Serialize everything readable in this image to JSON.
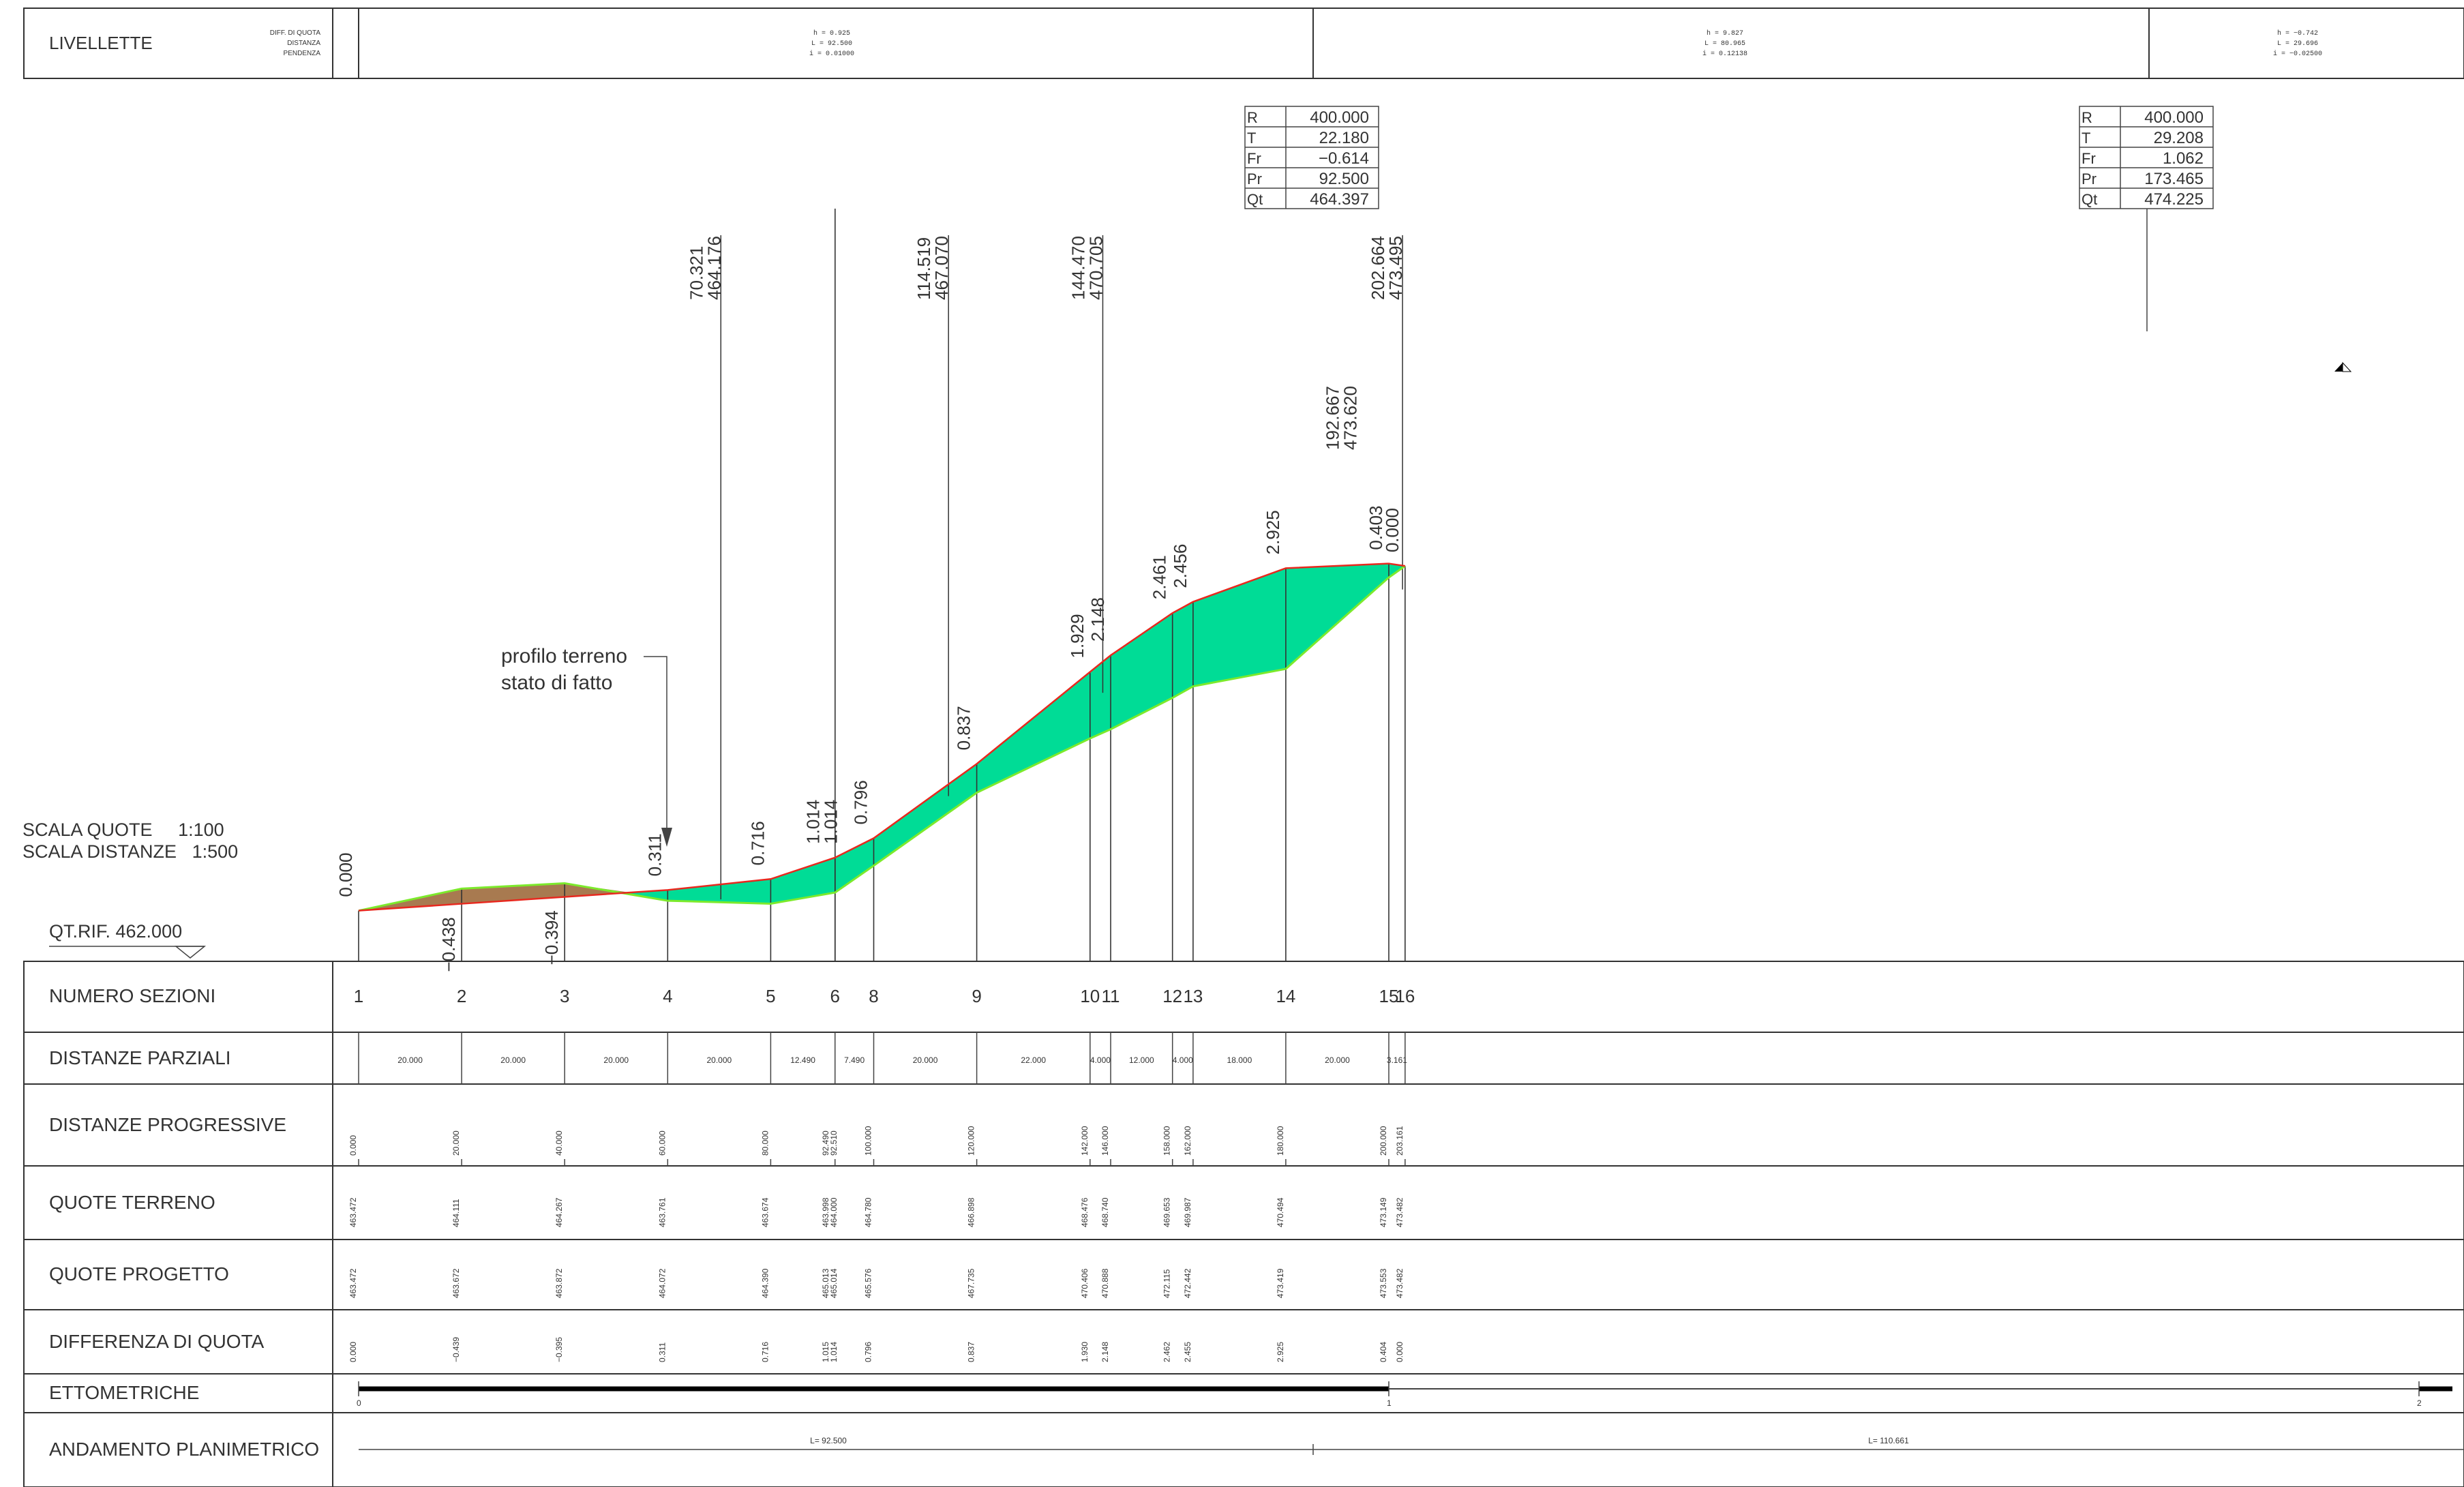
{
  "livellette": {
    "label": "LIVELLETTE",
    "sublabels": [
      "DIFF. DI QUOTA",
      "DISTANZA",
      "PENDENZA"
    ],
    "segments": [
      {
        "h": "h = 0.925",
        "L": "L = 92.500",
        "i": "i = 0.01000"
      },
      {
        "h": "h = 9.827",
        "L": "L = 80.965",
        "i": "i = 0.12138"
      },
      {
        "h": "h = −0.742",
        "L": "L = 29.696",
        "i": "i = −0.02500"
      }
    ]
  },
  "curves": [
    {
      "R": "400.000",
      "T": "22.180",
      "Fr": "−0.614",
      "Pr": "92.500",
      "Qt": "464.397"
    },
    {
      "R": "400.000",
      "T": "29.208",
      "Fr": "1.062",
      "Pr": "173.465",
      "Qt": "474.225"
    }
  ],
  "curve_labels": [
    "R",
    "T",
    "Fr",
    "Pr",
    "Qt"
  ],
  "scale": {
    "quote": "SCALA QUOTE     1:100",
    "distanze": "SCALA DISTANZE   1:500",
    "qt_rif": "QT.RIF. 462.000"
  },
  "annotation": {
    "line1": "profilo terreno",
    "line2": "stato di fatto"
  },
  "rows": {
    "numero_sezioni": "NUMERO SEZIONI",
    "distanze_parziali": "DISTANZE PARZIALI",
    "distanze_progressive": "DISTANZE PROGRESSIVE",
    "quote_terreno": "QUOTE TERRENO",
    "quote_progetto": "QUOTE PROGETTO",
    "differenza_quota": "DIFFERENZA DI QUOTA",
    "ettometriche": "ETTOMETRICHE",
    "andamento": "ANDAMENTO PLANIMETRICO"
  },
  "sections": [
    {
      "num": "1",
      "prog": 0.0,
      "prog_label": "0.000",
      "terreno": 463.472,
      "terreno_label": "463.472",
      "progetto": 463.472,
      "progetto_label": "463.472",
      "diff_label": "0.000"
    },
    {
      "num": "2",
      "prog": 20.0,
      "prog_label": "20.000",
      "terreno": 464.111,
      "terreno_label": "464.111",
      "progetto": 463.672,
      "progetto_label": "463.672",
      "diff_label": "−0.439"
    },
    {
      "num": "3",
      "prog": 40.0,
      "prog_label": "40.000",
      "terreno": 464.267,
      "terreno_label": "464.267",
      "progetto": 463.872,
      "progetto_label": "463.872",
      "diff_label": "−0.395"
    },
    {
      "num": "4",
      "prog": 60.0,
      "prog_label": "60.000",
      "terreno": 463.761,
      "terreno_label": "463.761",
      "progetto": 464.072,
      "progetto_label": "464.072",
      "diff_label": "0.311"
    },
    {
      "num": "5",
      "prog": 80.0,
      "prog_label": "80.000",
      "terreno": 463.674,
      "terreno_label": "463.674",
      "progetto": 464.39,
      "progetto_label": "464.390",
      "diff_label": "0.716"
    },
    {
      "num": "6",
      "prog": 92.49,
      "prog_label": "92.490\n92.510",
      "terreno": 463.998,
      "terreno_label": "463.998\n464.000",
      "progetto": 465.013,
      "progetto_label": "465.013\n465.014",
      "diff_label": "1.015\n1.014"
    },
    {
      "num": "8",
      "prog": 100.0,
      "prog_label": "100.000",
      "terreno": 464.78,
      "terreno_label": "464.780",
      "progetto": 465.576,
      "progetto_label": "465.576",
      "diff_label": "0.796"
    },
    {
      "num": "9",
      "prog": 120.0,
      "prog_label": "120.000",
      "terreno": 466.898,
      "terreno_label": "466.898",
      "progetto": 467.735,
      "progetto_label": "467.735",
      "diff_label": "0.837"
    },
    {
      "num": "10",
      "prog": 142.0,
      "prog_label": "142.000",
      "terreno": 468.476,
      "terreno_label": "468.476",
      "progetto": 470.406,
      "progetto_label": "470.406",
      "diff_label": "1.930"
    },
    {
      "num": "11",
      "prog": 146.0,
      "prog_label": "146.000",
      "terreno": 468.74,
      "terreno_label": "468.740",
      "progetto": 470.888,
      "progetto_label": "470.888",
      "diff_label": "2.148"
    },
    {
      "num": "12",
      "prog": 158.0,
      "prog_label": "158.000",
      "terreno": 469.653,
      "terreno_label": "469.653",
      "progetto": 472.115,
      "progetto_label": "472.115",
      "diff_label": "2.462"
    },
    {
      "num": "13",
      "prog": 162.0,
      "prog_label": "162.000",
      "terreno": 469.987,
      "terreno_label": "469.987",
      "progetto": 472.442,
      "progetto_label": "472.442",
      "diff_label": "2.455"
    },
    {
      "num": "14",
      "prog": 180.0,
      "prog_label": "180.000",
      "terreno": 470.494,
      "terreno_label": "470.494",
      "progetto": 473.419,
      "progetto_label": "473.419",
      "diff_label": "2.925"
    },
    {
      "num": "15",
      "prog": 200.0,
      "prog_label": "200.000",
      "terreno": 473.149,
      "terreno_label": "473.149",
      "progetto": 473.553,
      "progetto_label": "473.553",
      "diff_label": "0.404"
    },
    {
      "num": "16",
      "prog": 203.161,
      "prog_label": "203.161",
      "terreno": 473.482,
      "terreno_label": "473.482",
      "progetto": 473.482,
      "progetto_label": "473.482",
      "diff_label": "0.000"
    }
  ],
  "profile_diffs": [
    "0.000",
    "−0.438",
    "−0.394",
    "0.311",
    "0.716",
    "1.014\n1.014",
    "0.796",
    "0.837",
    "1.929",
    "2.148",
    "2.461",
    "2.456",
    "2.925",
    "0.403",
    "0.000"
  ],
  "parziali": [
    "20.000",
    "20.000",
    "20.000",
    "20.000",
    "12.490",
    "7.490",
    "20.000",
    "22.000",
    "4.000",
    "12.000",
    "4.000",
    "18.000",
    "20.000",
    "3.161"
  ],
  "vertical_labels": [
    {
      "prog": 70.321,
      "line1": "70.321",
      "line2": "464.176"
    },
    {
      "prog": 114.519,
      "line1": "114.519",
      "line2": "467.070"
    },
    {
      "prog": 144.47,
      "line1": "144.470",
      "line2": "470.705"
    },
    {
      "prog": 202.664,
      "line1": "202.664",
      "line2": "473.495"
    }
  ],
  "vertex_label": {
    "line1": "192.667",
    "line2": "473.620"
  },
  "ettometriche": [
    "0",
    "1",
    "2"
  ],
  "andamento": [
    {
      "label": "L= 92.500"
    },
    {
      "label": "L= 110.661"
    }
  ],
  "colors": {
    "fill": "#00dc96",
    "terrain_fill": "#a87a50",
    "terrain_line": "#7cea2c",
    "project_line": "#e8281e"
  }
}
